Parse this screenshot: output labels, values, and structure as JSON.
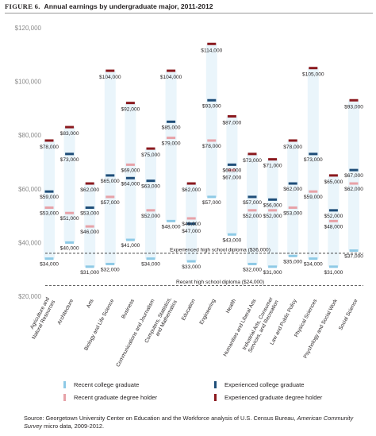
{
  "figure": {
    "label": "FIGURE 6.",
    "title": "Annual earnings by undergraduate major, 2011-2012"
  },
  "chart_data": {
    "type": "range",
    "ylim": [
      20000,
      120000
    ],
    "yticks": [
      20000,
      40000,
      60000,
      80000,
      100000,
      120000
    ],
    "ytick_labels": [
      "$20,000",
      "$40,000",
      "$60,000",
      "$80,000",
      "$100,000",
      "$120,000"
    ],
    "grid": false,
    "categories": [
      "Agriculture and Natural Resources",
      "Architecture",
      "Arts",
      "Biology and Life Science",
      "Business",
      "Communications and Journalism",
      "Computers, Statistics, and Mathematics",
      "Education",
      "Engineering",
      "Health",
      "Humanities and Liberal Arts",
      "Industrial Arts, Consumer Services, and Recreation",
      "Law and Public Policy",
      "Physical Sciences",
      "Psychology and Social Work",
      "Social Science"
    ],
    "category_labels": [
      [
        "Agriculture and",
        "Natural Resources"
      ],
      [
        "Architecture"
      ],
      [
        "Arts"
      ],
      [
        "Biology and Life Science"
      ],
      [
        "Business"
      ],
      [
        "Communications and Journalism"
      ],
      [
        "Computers, Statistics,",
        "and Mathematics"
      ],
      [
        "Education"
      ],
      [
        "Engineering"
      ],
      [
        "Health"
      ],
      [
        "Humanities and Liberal Arts"
      ],
      [
        "Industrial Arts, Consumer",
        "Services, and Recreation"
      ],
      [
        "Law and Public Policy"
      ],
      [
        "Physical Sciences"
      ],
      [
        "Psychology and Social Work"
      ],
      [
        "Social Science"
      ]
    ],
    "series": [
      {
        "name": "Recent college graduate",
        "color": "#8ecae6",
        "values": [
          34000,
          40000,
          31000,
          32000,
          41000,
          34000,
          48000,
          33000,
          57000,
          43000,
          32000,
          31000,
          35000,
          34000,
          31000,
          37000
        ]
      },
      {
        "name": "Experienced college graduate",
        "color": "#1f4e79",
        "values": [
          59000,
          73000,
          53000,
          65000,
          64000,
          63000,
          85000,
          47000,
          93000,
          69000,
          57000,
          56000,
          62000,
          73000,
          52000,
          67000
        ]
      },
      {
        "name": "Recent graduate degree holder",
        "color": "#e7a2a8",
        "values": [
          53000,
          51000,
          46000,
          57000,
          69000,
          52000,
          79000,
          49000,
          78000,
          67000,
          52000,
          52000,
          53000,
          59000,
          48000,
          62000
        ]
      },
      {
        "name": "Experienced graduate degree holder",
        "color": "#8b1a1f",
        "values": [
          78000,
          83000,
          62000,
          104000,
          92000,
          75000,
          104000,
          62000,
          114000,
          87000,
          73000,
          71000,
          78000,
          105000,
          65000,
          93000
        ]
      }
    ],
    "value_labels": [
      [
        "$34,000",
        "$59,000",
        "$53,000",
        "$78,000"
      ],
      [
        "$40,000",
        "$73,000",
        "$51,000",
        "$83,000"
      ],
      [
        "$31,000",
        "$53,000",
        "$46,000",
        "$62,000"
      ],
      [
        "$32,000",
        "$65,000",
        "$57,000",
        "$104,000"
      ],
      [
        "$41,000",
        "$64,000",
        "$69,000",
        "$92,000"
      ],
      [
        "$34,000",
        "$63,000",
        "$52,000",
        "$75,000"
      ],
      [
        "$48,000",
        "$85,000",
        "$79,000",
        "$104,000"
      ],
      [
        "$33,000",
        "$47,000",
        "$49,000",
        "$62,000"
      ],
      [
        "$57,000",
        "$93,000",
        "$78,000",
        "$114,000"
      ],
      [
        "$43,000",
        "$69,000",
        "$67,000",
        "$87,000"
      ],
      [
        "$32,000",
        "$57,000",
        "$52,000",
        "$73,000"
      ],
      [
        "$31,000",
        "$56,000",
        "$52,000",
        "$71,000"
      ],
      [
        "$35,000",
        "$62,000",
        "$53,000",
        "$78,000"
      ],
      [
        "$34,000",
        "$73,000",
        "$59,000",
        "$105,000"
      ],
      [
        "$31,000",
        "$52,000",
        "$48,000",
        "$65,000"
      ],
      [
        "$37,000",
        "$67,000",
        "$62,000",
        "$93,000"
      ]
    ],
    "range_color": "#eaf5fb",
    "reference_lines": [
      {
        "label": "Experienced high school diploma ($36,000)",
        "value": 36000
      },
      {
        "label": "Recent high school diploma ($24,000)",
        "value": 24000
      }
    ],
    "legend_placement": "bottom"
  },
  "source": {
    "prefix": "Source: Georgetown University Center on Education and the Workforce analysis of U.S. Census Bureau, ",
    "italic": "American Community Survey",
    "suffix": " micro data, 2009-2012."
  }
}
